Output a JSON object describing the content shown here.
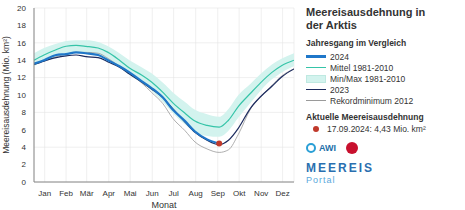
{
  "chart_data": {
    "type": "line",
    "title": "Meereisausdehnung in der Arktis",
    "subtitle": "Jahresgang im Vergleich",
    "y_label": "Meereisausdehnung (Mio. km²)",
    "x_label": "Monat",
    "x": [
      1,
      15,
      32,
      46,
      60,
      74,
      91,
      105,
      121,
      135,
      152,
      166,
      182,
      196,
      213,
      227,
      244,
      261,
      274,
      288,
      305,
      319,
      335,
      349,
      366
    ],
    "xlim": [
      1,
      366
    ],
    "xticks": [
      {
        "value": 16,
        "label": "Jan"
      },
      {
        "value": 46,
        "label": "Feb"
      },
      {
        "value": 75,
        "label": "Mär"
      },
      {
        "value": 106,
        "label": "Apr"
      },
      {
        "value": 136,
        "label": "Mai"
      },
      {
        "value": 167,
        "label": "Jun"
      },
      {
        "value": 197,
        "label": "Jul"
      },
      {
        "value": 228,
        "label": "Aug"
      },
      {
        "value": 259,
        "label": "Sep"
      },
      {
        "value": 289,
        "label": "Okt"
      },
      {
        "value": 320,
        "label": "Nov"
      },
      {
        "value": 350,
        "label": "Dez"
      }
    ],
    "ylim": [
      0,
      20
    ],
    "yticks": [
      0,
      2,
      4,
      6,
      8,
      10,
      12,
      14,
      16,
      18,
      20
    ],
    "grid": true,
    "legend": "right",
    "series": [
      {
        "name": "2024",
        "color": "#1f77c9",
        "values": [
          13.6,
          14.0,
          14.6,
          14.7,
          14.9,
          14.8,
          14.6,
          14.0,
          13.3,
          12.6,
          11.6,
          10.8,
          9.7,
          8.3,
          7.0,
          5.8,
          4.9,
          4.43,
          null,
          null,
          null,
          null,
          null,
          null,
          null
        ]
      },
      {
        "name": "Mittel 1981-2010",
        "color": "#35c4a8",
        "values": [
          14.0,
          14.6,
          15.2,
          15.6,
          15.7,
          15.6,
          15.4,
          14.9,
          14.0,
          13.1,
          12.3,
          11.5,
          10.3,
          9.1,
          7.9,
          7.0,
          6.5,
          6.3,
          7.1,
          8.7,
          10.2,
          11.4,
          12.6,
          13.4,
          14.0
        ]
      },
      {
        "name": "Min/Max 1981-2010",
        "type": "range",
        "color": "#d3f3ee",
        "low": [
          13.3,
          13.9,
          14.4,
          14.8,
          14.9,
          14.8,
          14.6,
          14.1,
          13.2,
          12.3,
          11.4,
          10.5,
          9.2,
          7.9,
          6.6,
          5.7,
          5.3,
          5.2,
          5.9,
          7.4,
          9.1,
          10.5,
          11.8,
          12.6,
          13.3
        ],
        "high": [
          14.8,
          15.4,
          15.9,
          16.2,
          16.3,
          16.3,
          16.1,
          15.6,
          14.8,
          14.0,
          13.2,
          12.5,
          11.4,
          10.3,
          9.2,
          8.3,
          7.8,
          7.5,
          8.4,
          10.0,
          11.3,
          12.4,
          13.5,
          14.2,
          14.8
        ]
      },
      {
        "name": "2023",
        "color": "#1c2b5e",
        "values": [
          13.5,
          13.9,
          14.3,
          14.5,
          14.6,
          14.4,
          14.3,
          13.8,
          13.2,
          12.4,
          11.5,
          10.7,
          9.7,
          8.4,
          6.9,
          5.7,
          4.8,
          4.3,
          4.8,
          6.2,
          8.5,
          9.8,
          11.0,
          12.1,
          13.0
        ]
      },
      {
        "name": "Rekordminimum 2012",
        "color": "#9a9a9a",
        "values": [
          13.5,
          13.9,
          14.4,
          14.7,
          14.9,
          14.9,
          14.8,
          14.2,
          13.3,
          12.5,
          11.4,
          10.3,
          9.0,
          7.3,
          5.9,
          4.6,
          3.8,
          3.4,
          3.7,
          5.5,
          8.4,
          9.8,
          11.1,
          12.2,
          13.0
        ]
      }
    ],
    "annotation": {
      "title": "Aktuelle Meereisausdehnung",
      "label": "17.09.2024: 4,43 Mio. km²",
      "x": 261,
      "y": 4.43,
      "color": "#c0392b"
    },
    "logos": [
      "AWI",
      "MEEREIS",
      "Portal"
    ]
  }
}
